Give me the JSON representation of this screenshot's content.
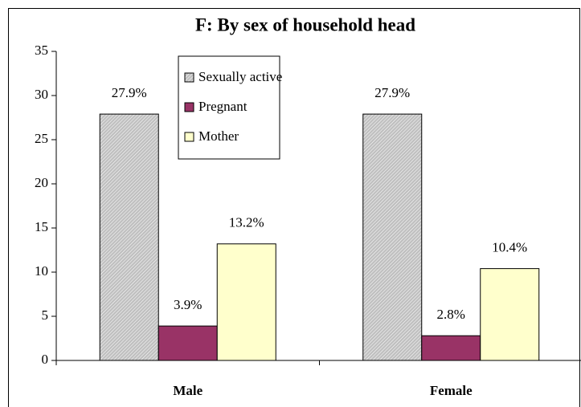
{
  "chart_data": {
    "type": "bar",
    "title": "F: By sex of household head",
    "categories": [
      "Male",
      "Female"
    ],
    "series": [
      {
        "name": "Sexually active",
        "color": "#c0c0c0",
        "values": [
          27.9,
          27.9
        ],
        "value_labels": [
          "27.9%",
          "27.9%"
        ]
      },
      {
        "name": "Pregnant",
        "color": "#993366",
        "values": [
          3.9,
          2.8
        ],
        "value_labels": [
          "3.9%",
          "2.8%"
        ]
      },
      {
        "name": "Mother",
        "color": "#ffffcc",
        "values": [
          13.2,
          10.4
        ],
        "value_labels": [
          "13.2%",
          "10.4%"
        ]
      }
    ],
    "ylim": [
      0,
      35
    ],
    "yticks": [
      0,
      5,
      10,
      15,
      20,
      25,
      30,
      35
    ],
    "grid": false
  }
}
